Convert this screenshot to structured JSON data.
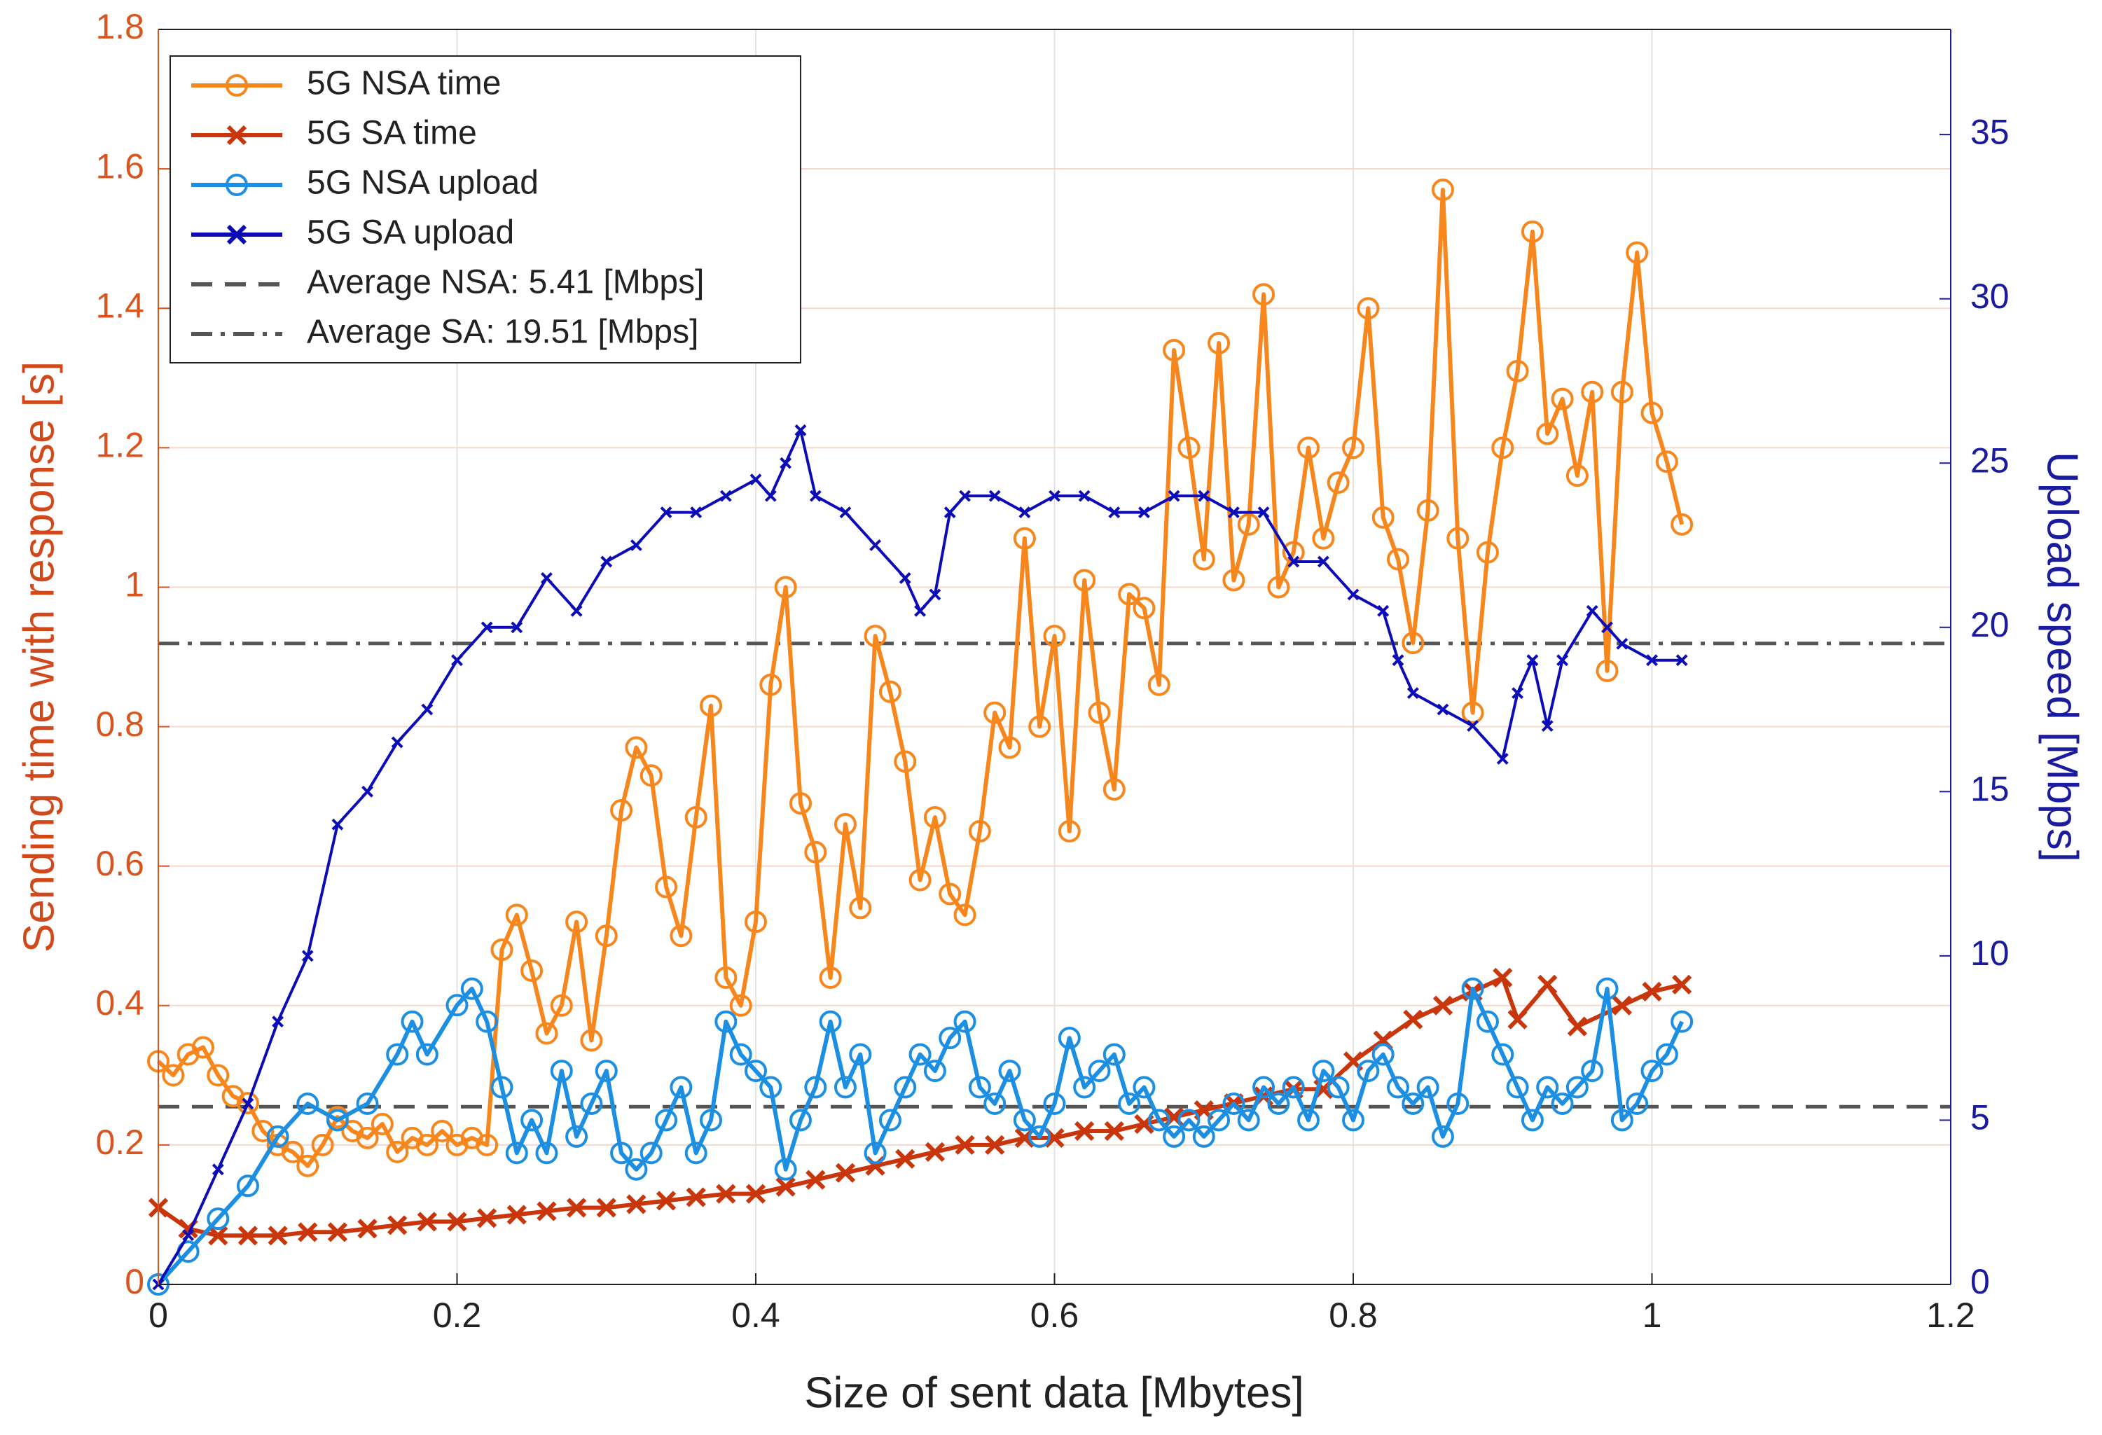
{
  "chart_data": {
    "type": "line",
    "xlabel": "Size of sent data [Mbytes]",
    "ylabel": "Sending time with response [s]",
    "y2label": "Upload speed [Mbps]",
    "xlim": [
      0,
      1.2
    ],
    "xticks": [
      0,
      0.2,
      0.4,
      0.6,
      0.8,
      1,
      1.2
    ],
    "ylim": [
      0,
      1.8
    ],
    "yticks": [
      0,
      0.2,
      0.4,
      0.6,
      0.8,
      1,
      1.2,
      1.4,
      1.6,
      1.8
    ],
    "y2lim": [
      0,
      38.2
    ],
    "y2ticks": [
      0,
      5,
      10,
      15,
      20,
      25,
      30,
      35
    ],
    "grid": true,
    "legend": "upper left",
    "series": [
      {
        "name": "5G NSA time",
        "color": "#f7861c",
        "marker": "circle",
        "x": [
          0,
          0.01,
          0.02,
          0.03,
          0.04,
          0.05,
          0.06,
          0.07,
          0.08,
          0.09,
          0.1,
          0.11,
          0.12,
          0.13,
          0.14,
          0.15,
          0.16,
          0.17,
          0.18,
          0.19,
          0.2,
          0.21,
          0.22,
          0.23,
          0.24,
          0.25,
          0.26,
          0.27,
          0.28,
          0.29,
          0.3,
          0.31,
          0.32,
          0.33,
          0.34,
          0.35,
          0.36,
          0.37,
          0.38,
          0.39,
          0.4,
          0.41,
          0.42,
          0.43,
          0.44,
          0.45,
          0.46,
          0.47,
          0.48,
          0.49,
          0.5,
          0.51,
          0.52,
          0.53,
          0.54,
          0.55,
          0.56,
          0.57,
          0.58,
          0.59,
          0.6,
          0.61,
          0.62,
          0.63,
          0.64,
          0.65,
          0.66,
          0.67,
          0.68,
          0.69,
          0.7,
          0.71,
          0.72,
          0.73,
          0.74,
          0.75,
          0.76,
          0.77,
          0.78,
          0.79,
          0.8,
          0.81,
          0.82,
          0.83,
          0.84,
          0.85,
          0.86,
          0.87,
          0.88,
          0.89,
          0.9,
          0.91,
          0.92,
          0.93,
          0.94,
          0.95,
          0.96,
          0.97,
          0.98,
          0.99,
          1.0,
          1.01,
          1.02
        ],
        "values": [
          0.32,
          0.3,
          0.33,
          0.34,
          0.3,
          0.27,
          0.26,
          0.22,
          0.2,
          0.19,
          0.17,
          0.2,
          0.24,
          0.22,
          0.21,
          0.23,
          0.19,
          0.21,
          0.2,
          0.22,
          0.2,
          0.21,
          0.2,
          0.48,
          0.53,
          0.45,
          0.36,
          0.4,
          0.52,
          0.35,
          0.5,
          0.68,
          0.77,
          0.73,
          0.57,
          0.5,
          0.67,
          0.83,
          0.44,
          0.4,
          0.52,
          0.86,
          1.0,
          0.69,
          0.62,
          0.44,
          0.66,
          0.54,
          0.93,
          0.85,
          0.75,
          0.58,
          0.67,
          0.56,
          0.53,
          0.65,
          0.82,
          0.77,
          1.07,
          0.8,
          0.93,
          0.65,
          1.01,
          0.82,
          0.71,
          0.99,
          0.97,
          0.86,
          1.34,
          1.2,
          1.04,
          1.35,
          1.01,
          1.09,
          1.42,
          1.0,
          1.05,
          1.2,
          1.07,
          1.15,
          1.2,
          1.4,
          1.1,
          1.04,
          0.92,
          1.11,
          1.57,
          1.07,
          0.82,
          1.05,
          1.2,
          1.31,
          1.51,
          1.22,
          1.27,
          1.16,
          1.28,
          0.88,
          1.28,
          1.48,
          1.25,
          1.18,
          1.09
        ]
      },
      {
        "name": "5G SA time",
        "color": "#c9360c",
        "marker": "x",
        "x": [
          0,
          0.02,
          0.04,
          0.06,
          0.08,
          0.1,
          0.12,
          0.14,
          0.16,
          0.18,
          0.2,
          0.22,
          0.24,
          0.26,
          0.28,
          0.3,
          0.32,
          0.34,
          0.36,
          0.38,
          0.4,
          0.42,
          0.44,
          0.46,
          0.48,
          0.5,
          0.52,
          0.54,
          0.56,
          0.58,
          0.6,
          0.62,
          0.64,
          0.66,
          0.68,
          0.7,
          0.72,
          0.74,
          0.76,
          0.78,
          0.8,
          0.82,
          0.84,
          0.86,
          0.88,
          0.9,
          0.91,
          0.93,
          0.95,
          0.98,
          1.0,
          1.02
        ],
        "values": [
          0.11,
          0.08,
          0.07,
          0.07,
          0.07,
          0.075,
          0.075,
          0.08,
          0.085,
          0.09,
          0.09,
          0.095,
          0.1,
          0.105,
          0.11,
          0.11,
          0.115,
          0.12,
          0.125,
          0.13,
          0.13,
          0.14,
          0.15,
          0.16,
          0.17,
          0.18,
          0.19,
          0.2,
          0.2,
          0.21,
          0.21,
          0.22,
          0.22,
          0.23,
          0.24,
          0.25,
          0.26,
          0.27,
          0.28,
          0.28,
          0.32,
          0.35,
          0.38,
          0.4,
          0.42,
          0.44,
          0.38,
          0.43,
          0.37,
          0.4,
          0.42,
          0.43
        ]
      },
      {
        "name": "5G NSA upload",
        "color": "#1c8fe3",
        "marker": "circle",
        "axis": "y2",
        "x": [
          0,
          0.02,
          0.04,
          0.06,
          0.08,
          0.1,
          0.12,
          0.14,
          0.16,
          0.17,
          0.18,
          0.2,
          0.21,
          0.22,
          0.23,
          0.24,
          0.25,
          0.26,
          0.27,
          0.28,
          0.29,
          0.3,
          0.31,
          0.32,
          0.33,
          0.34,
          0.35,
          0.36,
          0.37,
          0.38,
          0.39,
          0.4,
          0.41,
          0.42,
          0.43,
          0.44,
          0.45,
          0.46,
          0.47,
          0.48,
          0.49,
          0.5,
          0.51,
          0.52,
          0.53,
          0.54,
          0.55,
          0.56,
          0.57,
          0.58,
          0.59,
          0.6,
          0.61,
          0.62,
          0.63,
          0.64,
          0.65,
          0.66,
          0.67,
          0.68,
          0.69,
          0.7,
          0.71,
          0.72,
          0.73,
          0.74,
          0.75,
          0.76,
          0.77,
          0.78,
          0.79,
          0.8,
          0.81,
          0.82,
          0.83,
          0.84,
          0.85,
          0.86,
          0.87,
          0.88,
          0.89,
          0.9,
          0.91,
          0.92,
          0.93,
          0.94,
          0.95,
          0.96,
          0.97,
          0.98,
          0.99,
          1.0,
          1.01,
          1.02
        ],
        "values": [
          0,
          1,
          2,
          3,
          4.5,
          5.5,
          5,
          5.5,
          7,
          8,
          7,
          8.5,
          9,
          8,
          6,
          4,
          5,
          4,
          6.5,
          4.5,
          5.5,
          6.5,
          4,
          3.5,
          4,
          5,
          6,
          4,
          5,
          8,
          7,
          6.5,
          6,
          3.5,
          5,
          6,
          8,
          6,
          7,
          4,
          5,
          6,
          7,
          6.5,
          7.5,
          8,
          6,
          5.5,
          6.5,
          5,
          4.5,
          5.5,
          7.5,
          6,
          6.5,
          7,
          5.5,
          6,
          5,
          4.5,
          5,
          4.5,
          5,
          5.5,
          5,
          6,
          5.5,
          6,
          5,
          6.5,
          6,
          5,
          6.5,
          7,
          6,
          5.5,
          6,
          4.5,
          5.5,
          9,
          8,
          7,
          6,
          5,
          6,
          5.5,
          6,
          6.5,
          9,
          5,
          5.5,
          6.5,
          7,
          8
        ]
      },
      {
        "name": "5G SA upload",
        "color": "#0b0bb8",
        "marker": "x",
        "axis": "y2",
        "x": [
          0,
          0.02,
          0.04,
          0.06,
          0.08,
          0.1,
          0.12,
          0.14,
          0.16,
          0.18,
          0.2,
          0.22,
          0.24,
          0.26,
          0.28,
          0.3,
          0.32,
          0.34,
          0.36,
          0.38,
          0.4,
          0.41,
          0.42,
          0.43,
          0.44,
          0.46,
          0.48,
          0.5,
          0.51,
          0.52,
          0.53,
          0.54,
          0.56,
          0.58,
          0.6,
          0.62,
          0.64,
          0.66,
          0.68,
          0.7,
          0.72,
          0.74,
          0.76,
          0.78,
          0.8,
          0.82,
          0.83,
          0.84,
          0.86,
          0.88,
          0.9,
          0.91,
          0.92,
          0.93,
          0.94,
          0.96,
          0.97,
          0.98,
          1.0,
          1.02
        ],
        "values": [
          0,
          1.5,
          3.5,
          5.5,
          8,
          10,
          14,
          15,
          16.5,
          17.5,
          19,
          20,
          20,
          21.5,
          20.5,
          22,
          22.5,
          23.5,
          23.5,
          24,
          24.5,
          24,
          25,
          26,
          24,
          23.5,
          22.5,
          21.5,
          20.5,
          21,
          23.5,
          24,
          24,
          23.5,
          24,
          24,
          23.5,
          23.5,
          24,
          24,
          23.5,
          23.5,
          22,
          22,
          21,
          20.5,
          19,
          18,
          17.5,
          17,
          16,
          18,
          19,
          17,
          19,
          20.5,
          20,
          19.5,
          19,
          19
        ]
      }
    ],
    "reference_lines": [
      {
        "name": "Average NSA: 5.41 [Mbps]",
        "value": 5.41,
        "axis": "y2",
        "color": "#555555",
        "dash": "30,18"
      },
      {
        "name": "Average SA: 19.51 [Mbps]",
        "value": 19.51,
        "axis": "y2",
        "color": "#555555",
        "dash": "30,12,6,12"
      }
    ]
  }
}
